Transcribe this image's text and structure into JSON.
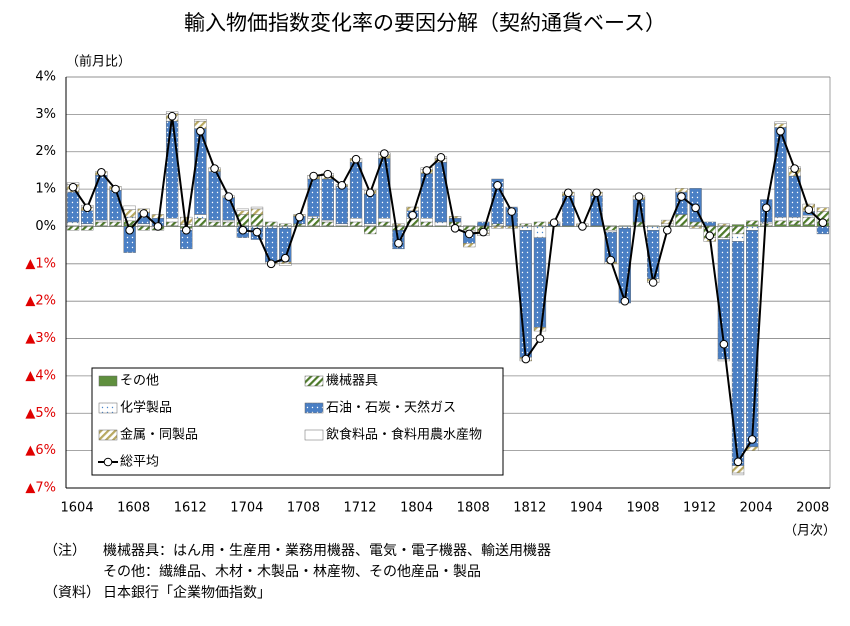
{
  "chart_data": {
    "type": "bar",
    "title": "輸入物価指数変化率の要因分解（契約通貨ベース）",
    "y_label": "（前月比）",
    "x_label": "（月次）",
    "categories": [
      "1604",
      null,
      null,
      null,
      "1608",
      null,
      null,
      null,
      "1612",
      null,
      null,
      null,
      "1704",
      null,
      null,
      null,
      "1708",
      null,
      null,
      null,
      "1712",
      null,
      null,
      null,
      "1804",
      null,
      null,
      null,
      "1808",
      null,
      null,
      null,
      "1812",
      null,
      null,
      null,
      "1904",
      null,
      null,
      null,
      "1908",
      null,
      null,
      null,
      "1912",
      null,
      null,
      null,
      "2004",
      null,
      null,
      null,
      "2008",
      null
    ],
    "ylim": [
      -7,
      4
    ],
    "yticks": [
      {
        "value": 4,
        "label": "4%"
      },
      {
        "value": 3,
        "label": "3%"
      },
      {
        "value": 2,
        "label": "2%"
      },
      {
        "value": 1,
        "label": "1%"
      },
      {
        "value": 0,
        "label": "0%"
      },
      {
        "value": -1,
        "label": "▲1%"
      },
      {
        "value": -2,
        "label": "▲2%"
      },
      {
        "value": -3,
        "label": "▲3%"
      },
      {
        "value": -4,
        "label": "▲4%"
      },
      {
        "value": -5,
        "label": "▲5%"
      },
      {
        "value": -6,
        "label": "▲6%"
      },
      {
        "value": -7,
        "label": "▲7%"
      }
    ],
    "negative_tick_color": "#e00000",
    "grid": true,
    "stacked": true,
    "series": [
      {
        "name": "その他",
        "color": "#5f8f3e",
        "fill_style": "solid",
        "values": [
          0.02,
          0.02,
          0.02,
          0.02,
          0.05,
          0.02,
          0.02,
          0.02,
          -0.05,
          0.02,
          0.02,
          0.02,
          0.02,
          0.02,
          0.02,
          0.02,
          0.02,
          0.02,
          0.02,
          0.02,
          0.02,
          0.02,
          0.02,
          0.02,
          0.02,
          0.02,
          0.02,
          0.02,
          0.02,
          0.02,
          0.02,
          0.02,
          0.02,
          0.02,
          0.02,
          0.02,
          0.02,
          0.02,
          0.02,
          0.02,
          0.02,
          0.02,
          0.02,
          0.02,
          0.02,
          0.02,
          0.02,
          0.05,
          0.05,
          0.02,
          0.05,
          0.05,
          0.05,
          0.1
        ]
      },
      {
        "name": "機械器具",
        "color": "#4e7a2a",
        "fill_style": "hatch",
        "values": [
          -0.1,
          -0.1,
          0.1,
          0.1,
          0.1,
          -0.1,
          -0.1,
          0.1,
          0.05,
          0.2,
          0.1,
          0.1,
          0.3,
          0.3,
          0.1,
          0.05,
          0.05,
          0.2,
          0.1,
          0.0,
          0.1,
          -0.2,
          0.1,
          -0.1,
          0.2,
          0.1,
          0.0,
          0.1,
          -0.1,
          -0.1,
          0.05,
          0.0,
          0.05,
          0.1,
          0.0,
          0.0,
          0.0,
          0.0,
          -0.1,
          0.0,
          0.1,
          0.0,
          0.0,
          0.3,
          0.1,
          -0.3,
          -0.3,
          -0.2,
          0.1,
          0.05,
          0.1,
          0.1,
          0.2,
          0.3
        ]
      },
      {
        "name": "化学製品",
        "color": "#4a86c8",
        "fill_style": "dots-light",
        "values": [
          0.1,
          0.05,
          0.05,
          0.05,
          0.1,
          0.05,
          0.0,
          0.1,
          -0.05,
          0.1,
          0.05,
          0.05,
          0.0,
          -0.05,
          -0.05,
          -0.05,
          0.0,
          0.05,
          0.05,
          0.05,
          0.1,
          0.05,
          0.1,
          0.0,
          0.0,
          0.1,
          0.1,
          0.0,
          -0.05,
          0.0,
          0.0,
          0.0,
          -0.1,
          -0.3,
          0.0,
          0.0,
          0.0,
          0.0,
          -0.05,
          -0.05,
          0.0,
          -0.1,
          0.05,
          0.0,
          0.0,
          0.0,
          -0.05,
          -0.2,
          -0.1,
          0.05,
          0.1,
          0.1,
          0.05,
          0.0
        ]
      },
      {
        "name": "石油・石炭・天然ガス",
        "color": "#4a7fc4",
        "fill_style": "dots-dark",
        "values": [
          0.8,
          0.35,
          1.2,
          0.8,
          -0.7,
          0.3,
          0.2,
          2.6,
          -0.5,
          2.3,
          1.3,
          0.6,
          -0.3,
          -0.3,
          -0.9,
          -0.9,
          0.2,
          1.0,
          1.1,
          1.0,
          1.5,
          0.8,
          1.6,
          -0.5,
          0.2,
          1.2,
          1.6,
          0.1,
          -0.3,
          0.1,
          1.2,
          0.5,
          -3.4,
          -2.4,
          0.05,
          0.8,
          0.0,
          0.8,
          -0.8,
          -2.0,
          0.6,
          -1.3,
          0.0,
          0.6,
          0.9,
          0.1,
          -3.2,
          -6.0,
          -5.8,
          0.6,
          2.4,
          1.1,
          0.1,
          -0.2
        ]
      },
      {
        "name": "金属・同製品",
        "color": "#b8a860",
        "fill_style": "hatch",
        "values": [
          0.2,
          0.1,
          0.1,
          0.1,
          0.2,
          0.1,
          0.1,
          0.2,
          0.2,
          0.2,
          0.1,
          0.05,
          0.1,
          0.15,
          -0.05,
          -0.05,
          0.05,
          0.1,
          0.1,
          0.05,
          0.1,
          0.1,
          0.1,
          0.05,
          0.1,
          0.1,
          0.1,
          0.05,
          -0.1,
          -0.1,
          -0.05,
          -0.05,
          -0.1,
          -0.1,
          0.05,
          0.1,
          0.05,
          0.1,
          -0.05,
          0.0,
          0.1,
          -0.1,
          0.1,
          0.1,
          -0.05,
          -0.1,
          0.05,
          -0.2,
          -0.1,
          0.0,
          0.1,
          0.2,
          0.2,
          0.1
        ]
      },
      {
        "name": "飲食料品・食料用農水産物",
        "color": "#ffffff",
        "fill_style": "solid",
        "values": [
          0.05,
          0.05,
          0.0,
          0.0,
          0.1,
          0.0,
          0.0,
          0.05,
          0.0,
          0.05,
          0.0,
          0.0,
          0.05,
          0.05,
          0.0,
          -0.05,
          0.0,
          0.0,
          0.05,
          0.0,
          0.0,
          0.0,
          0.05,
          0.0,
          0.0,
          0.05,
          0.05,
          0.0,
          0.0,
          -0.05,
          0.0,
          0.0,
          0.0,
          0.0,
          0.0,
          0.0,
          0.0,
          0.0,
          0.0,
          0.0,
          0.0,
          0.0,
          0.0,
          0.0,
          0.0,
          0.0,
          -0.05,
          -0.05,
          0.0,
          0.0,
          0.05,
          0.05,
          0.0,
          0.0
        ]
      },
      {
        "name": "総平均",
        "type": "line",
        "color": "#000000",
        "values": [
          1.05,
          0.5,
          1.45,
          1.0,
          -0.1,
          0.35,
          0.0,
          2.95,
          -0.1,
          2.55,
          1.55,
          0.8,
          -0.1,
          -0.15,
          -1.0,
          -0.85,
          0.25,
          1.35,
          1.4,
          1.1,
          1.8,
          0.9,
          1.95,
          -0.45,
          0.3,
          1.5,
          1.85,
          -0.05,
          -0.2,
          -0.15,
          1.1,
          0.4,
          -3.55,
          -3.0,
          0.1,
          0.9,
          0.0,
          0.9,
          -0.9,
          -2.0,
          0.8,
          -1.5,
          -0.1,
          0.8,
          0.5,
          -0.25,
          -3.15,
          -6.3,
          -5.7,
          0.5,
          2.55,
          1.55,
          0.45,
          0.1
        ]
      }
    ]
  },
  "notes": {
    "label": "（注）",
    "lines": [
      "機械器具：はん用・生産用・業務用機器、電気・電子機器、輸送用機器",
      "その他：繊維品、木材・木製品・林産物、その他産品・製品"
    ]
  },
  "source": {
    "label": "（資料）",
    "text": "日本銀行「企業物価指数」"
  }
}
